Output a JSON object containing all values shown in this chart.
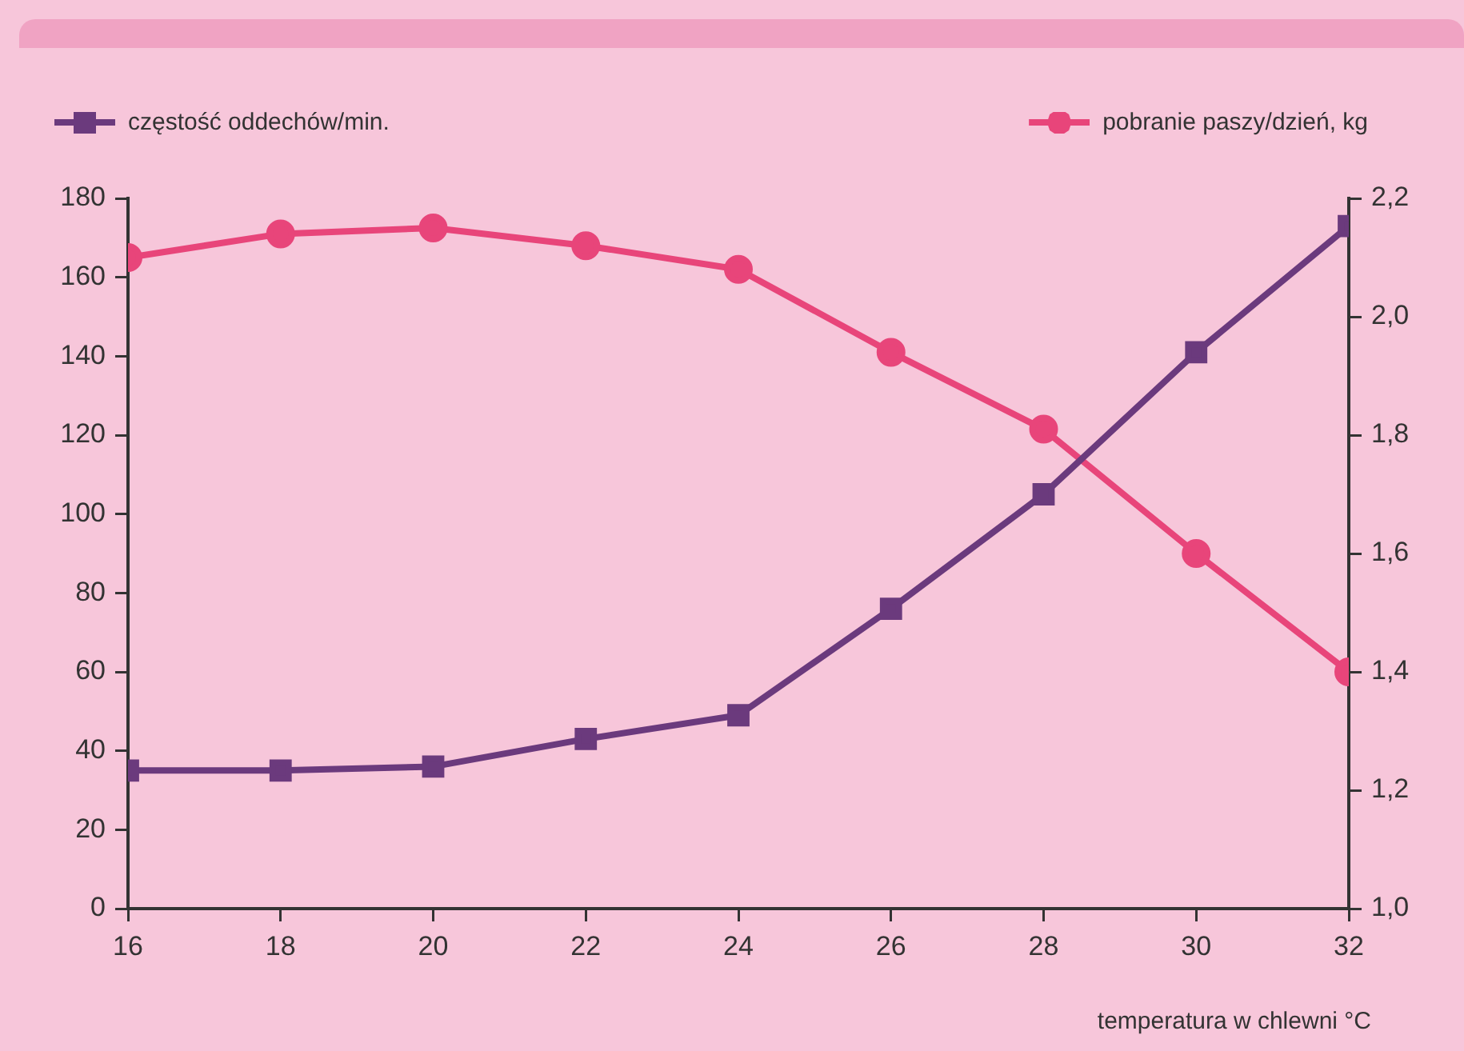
{
  "chart_data": {
    "type": "line",
    "xlabel": "temperatura w chlewni °C",
    "x": [
      16,
      18,
      20,
      22,
      24,
      26,
      28,
      30,
      32
    ],
    "xlim": [
      16,
      32
    ],
    "xticks": [
      16,
      18,
      20,
      22,
      24,
      26,
      28,
      30,
      32
    ],
    "ylim": [
      0,
      180
    ],
    "yticks": [
      0,
      20,
      40,
      60,
      80,
      100,
      120,
      140,
      160,
      180
    ],
    "y2lim": [
      1.0,
      2.2
    ],
    "y2ticks": [
      {
        "value": 1.0,
        "label": "1,0"
      },
      {
        "value": 1.2,
        "label": "1,2"
      },
      {
        "value": 1.4,
        "label": "1,4"
      },
      {
        "value": 1.6,
        "label": "1,6"
      },
      {
        "value": 1.8,
        "label": "1,8"
      },
      {
        "value": 2.0,
        "label": "2,0"
      },
      {
        "value": 2.2,
        "label": "2,2"
      }
    ],
    "grid": false,
    "legend": "top",
    "line_style": "solid",
    "series": [
      {
        "name": "częstość oddechów/min.",
        "color": "#6b3a7d",
        "marker": "square",
        "values": [
          35,
          35,
          36,
          43,
          49,
          76,
          105,
          141,
          173
        ]
      },
      {
        "name": "pobranie paszy/dzień, kg",
        "color": "#e8457a",
        "marker": "circle",
        "axis": "y2",
        "values": [
          2.1,
          2.14,
          2.15,
          2.12,
          2.08,
          1.94,
          1.81,
          1.6,
          1.4
        ]
      }
    ]
  }
}
